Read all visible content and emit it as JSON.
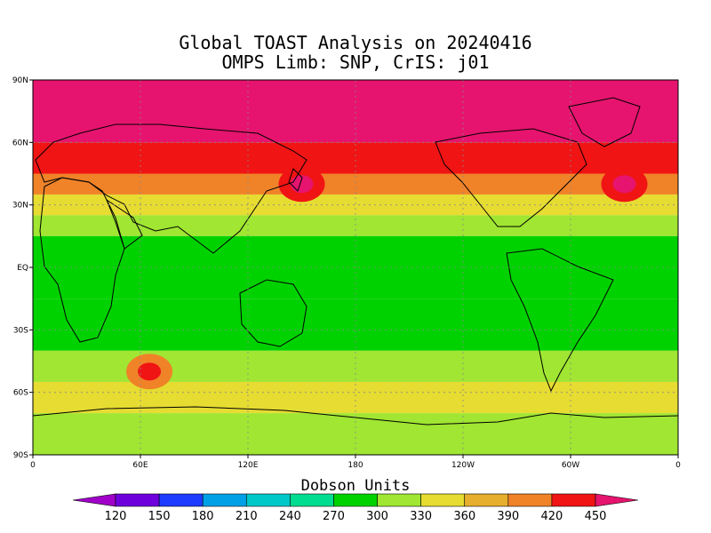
{
  "title": {
    "line1": "Global TOAST Analysis on 20240416",
    "line2": "OMPS Limb: SNP,  CrIS: j01"
  },
  "axes": {
    "lat_labels": [
      "90N",
      "60N",
      "30N",
      "EQ",
      "30S",
      "60S",
      "90S"
    ],
    "lon_labels": [
      "0",
      "60E",
      "120E",
      "180",
      "120W",
      "60W",
      "0"
    ]
  },
  "colorbar": {
    "title": "Dobson Units",
    "levels": [
      "120",
      "150",
      "180",
      "210",
      "240",
      "270",
      "300",
      "330",
      "360",
      "390",
      "420",
      "450"
    ],
    "colors": {
      "below": "#a000c8",
      "bins": [
        "#6e00dc",
        "#1e3cff",
        "#00a0e6",
        "#00c8c8",
        "#00dc90",
        "#00d200",
        "#a0e632",
        "#e6dc32",
        "#e6af2d",
        "#f08228",
        "#f01414"
      ],
      "above": "#e6146e"
    }
  },
  "chart_data": {
    "type": "heatmap",
    "title": "Global TOAST Analysis on 20240416",
    "subtitle": "OMPS Limb: SNP,  CrIS: j01",
    "xlabel": "",
    "ylabel": "",
    "x_range": [
      0,
      360
    ],
    "y_range": [
      -90,
      90
    ],
    "units": "Dobson Units",
    "grid": true,
    "zonal_bands": [
      {
        "lat_range": [
          60,
          90
        ],
        "value_DU": 450
      },
      {
        "lat_range": [
          45,
          60
        ],
        "value_DU": 420
      },
      {
        "lat_range": [
          35,
          45
        ],
        "value_DU": 390
      },
      {
        "lat_range": [
          25,
          35
        ],
        "value_DU": 330
      },
      {
        "lat_range": [
          15,
          25
        ],
        "value_DU": 300
      },
      {
        "lat_range": [
          -15,
          15
        ],
        "value_DU": 270
      },
      {
        "lat_range": [
          -40,
          -15
        ],
        "value_DU": 270
      },
      {
        "lat_range": [
          -55,
          -40
        ],
        "value_DU": 300
      },
      {
        "lat_range": [
          -70,
          -55
        ],
        "value_DU": 330
      },
      {
        "lat_range": [
          -90,
          -70
        ],
        "value_DU": 300
      }
    ],
    "local_maxima": [
      {
        "lon": 65,
        "lat": -50,
        "value_DU": 420
      },
      {
        "lon": 330,
        "lat": 40,
        "value_DU": 450
      },
      {
        "lon": 150,
        "lat": 40,
        "value_DU": 450
      }
    ]
  }
}
